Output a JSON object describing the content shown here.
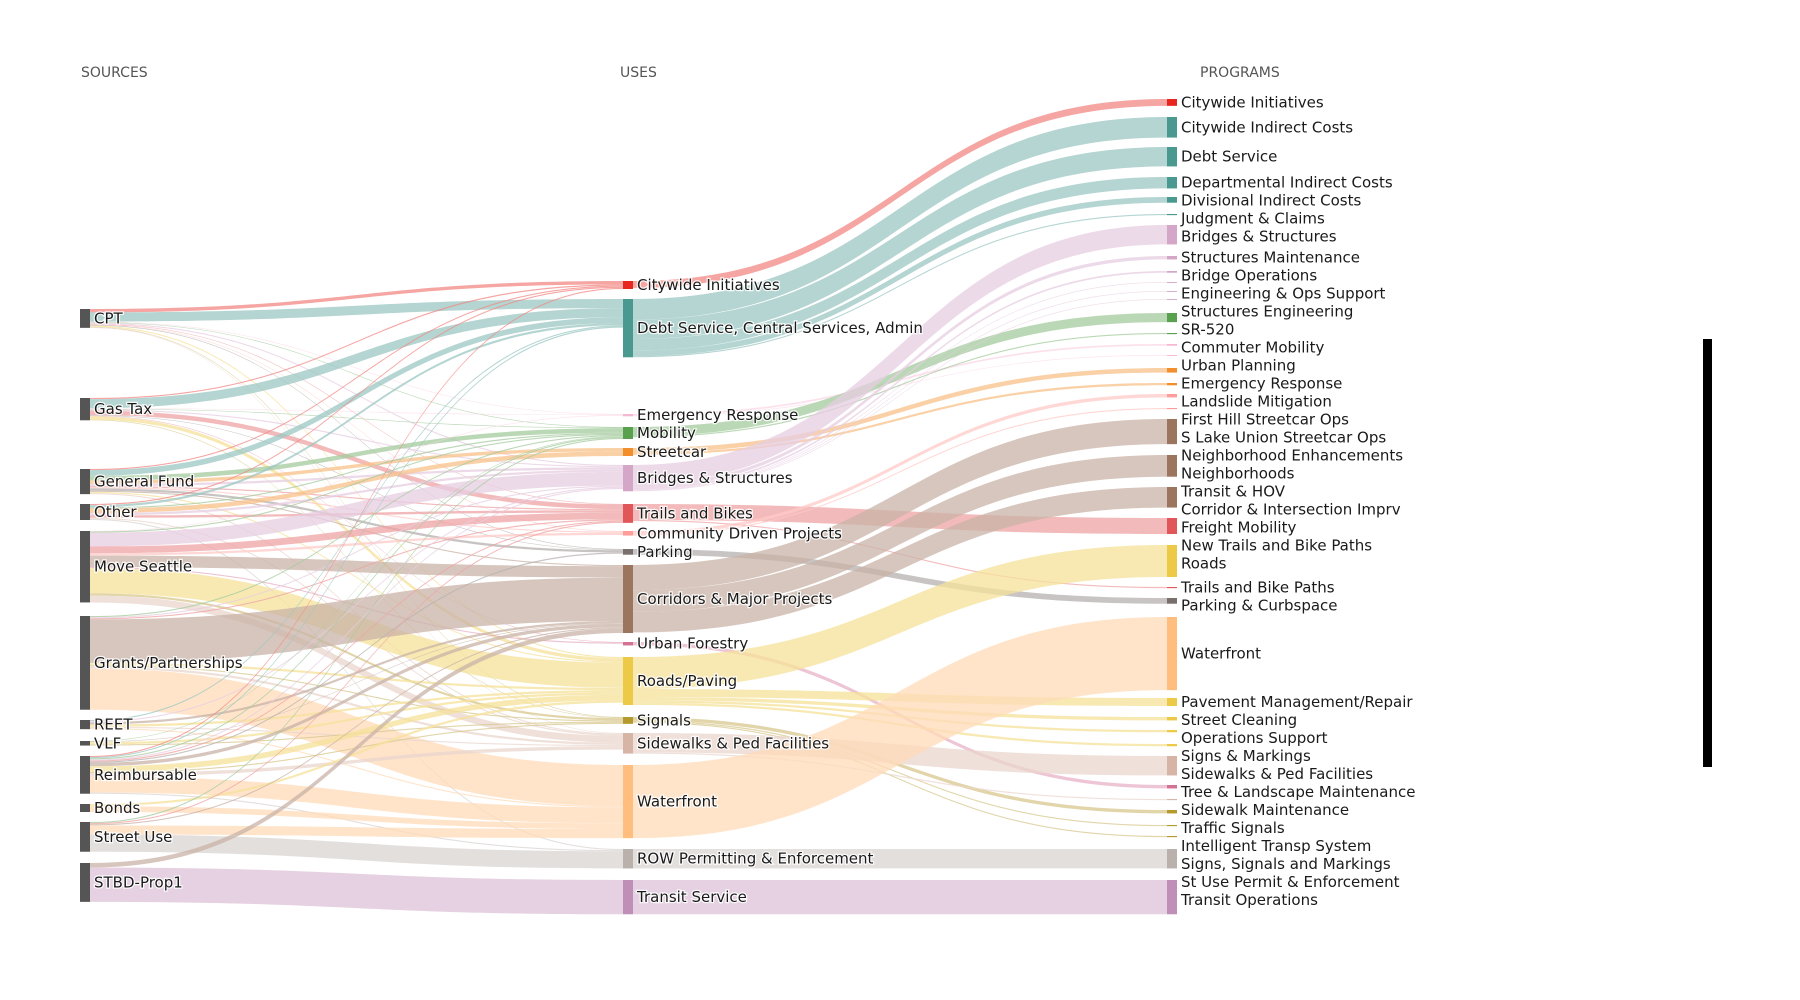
{
  "columns": {
    "sources": "SOURCES",
    "uses": "USES",
    "programs": "PROGRAMS"
  },
  "nodes": [
    {
      "label": "CPT",
      "column": "sources",
      "color": "#555555"
    },
    {
      "label": "Gas Tax",
      "column": "sources",
      "color": "#555555"
    },
    {
      "label": "General Fund",
      "column": "sources",
      "color": "#555555"
    },
    {
      "label": "Other",
      "column": "sources",
      "color": "#555555"
    },
    {
      "label": "Move Seattle",
      "column": "sources",
      "color": "#555555"
    },
    {
      "label": "Grants/Partnerships",
      "column": "sources",
      "color": "#555555"
    },
    {
      "label": "REET",
      "column": "sources",
      "color": "#555555"
    },
    {
      "label": "VLF",
      "column": "sources",
      "color": "#555555"
    },
    {
      "label": "Reimbursable",
      "column": "sources",
      "color": "#555555"
    },
    {
      "label": "Bonds",
      "column": "sources",
      "color": "#555555"
    },
    {
      "label": "Street Use",
      "column": "sources",
      "color": "#555555"
    },
    {
      "label": "STBD-Prop1",
      "column": "sources",
      "color": "#555555"
    },
    {
      "label": "Citywide Initiatives",
      "column": "uses",
      "color": "#e6261f"
    },
    {
      "label": "Debt Service, Central Services, Admin",
      "column": "uses",
      "color": "#4a9990"
    },
    {
      "label": "Emergency Response",
      "column": "uses",
      "color": "#f7b6d2"
    },
    {
      "label": "Mobility",
      "column": "uses",
      "color": "#59a14f"
    },
    {
      "label": "Streetcar",
      "column": "uses",
      "color": "#f28e2b"
    },
    {
      "label": "Bridges & Structures",
      "column": "uses",
      "color": "#d4a6c8"
    },
    {
      "label": "Trails and Bikes",
      "column": "uses",
      "color": "#e15759"
    },
    {
      "label": "Community Driven Projects",
      "column": "uses",
      "color": "#ff9d9a"
    },
    {
      "label": "Parking",
      "column": "uses",
      "color": "#79706e"
    },
    {
      "label": "Corridors & Major Projects",
      "column": "uses",
      "color": "#9c755f"
    },
    {
      "label": "Urban Forestry",
      "column": "uses",
      "color": "#d37295"
    },
    {
      "label": "Roads/Paving",
      "column": "uses",
      "color": "#edc948"
    },
    {
      "label": "Signals",
      "column": "uses",
      "color": "#b6992d"
    },
    {
      "label": "Sidewalks & Ped Facilities",
      "column": "uses",
      "color": "#d7b5a6"
    },
    {
      "label": "Waterfront",
      "column": "uses",
      "color": "#ffbe7d"
    },
    {
      "label": "ROW Permitting & Enforcement",
      "column": "uses",
      "color": "#bab0ac"
    },
    {
      "label": "Transit Service",
      "column": "uses",
      "color": "#c08fb7"
    },
    {
      "label": "Citywide Initiatives",
      "column": "programs",
      "color": "#e6261f"
    },
    {
      "label": "Citywide Indirect Costs",
      "column": "programs",
      "color": "#4a9990"
    },
    {
      "label": "Debt Service",
      "column": "programs",
      "color": "#4a9990"
    },
    {
      "label": "Departmental Indirect Costs",
      "column": "programs",
      "color": "#4a9990"
    },
    {
      "label": "Divisional Indirect Costs",
      "column": "programs",
      "color": "#4a9990"
    },
    {
      "label": "Judgment & Claims",
      "column": "programs",
      "color": "#4a9990"
    },
    {
      "label": "Bridges & Structures",
      "column": "programs",
      "color": "#d4a6c8"
    },
    {
      "label": "Structures Maintenance",
      "column": "programs",
      "color": "#d4a6c8"
    },
    {
      "label": "Bridge Operations",
      "column": "programs",
      "color": "#d4a6c8"
    },
    {
      "label": "Engineering & Ops Support",
      "column": "programs",
      "color": "#d4a6c8"
    },
    {
      "label": "Structures Engineering",
      "column": "programs",
      "color": "#d4a6c8"
    },
    {
      "label": "SR-520",
      "column": "programs",
      "color": "#d4a6c8"
    },
    {
      "label": "Commuter Mobility",
      "column": "programs",
      "color": "#59a14f"
    },
    {
      "label": "Urban Planning",
      "column": "programs",
      "color": "#59a14f"
    },
    {
      "label": "Emergency Response",
      "column": "programs",
      "color": "#f7b6d2"
    },
    {
      "label": "Landslide Mitigation",
      "column": "programs",
      "color": "#f7b6d2"
    },
    {
      "label": "First Hill Streetcar Ops",
      "column": "programs",
      "color": "#f28e2b"
    },
    {
      "label": "S Lake Union Streetcar Ops",
      "column": "programs",
      "color": "#f28e2b"
    },
    {
      "label": "Neighborhood Enhancements",
      "column": "programs",
      "color": "#ff9d9a"
    },
    {
      "label": "Neighborhoods",
      "column": "programs",
      "color": "#ff9d9a"
    },
    {
      "label": "Transit & HOV",
      "column": "programs",
      "color": "#9c755f"
    },
    {
      "label": "Corridor & Intersection Imprv",
      "column": "programs",
      "color": "#9c755f"
    },
    {
      "label": "Freight Mobility",
      "column": "programs",
      "color": "#9c755f"
    },
    {
      "label": "New Trails and Bike Paths",
      "column": "programs",
      "color": "#e15759"
    },
    {
      "label": "Roads",
      "column": "programs",
      "color": "#edc948"
    },
    {
      "label": "Trails and Bike Paths",
      "column": "programs",
      "color": "#e15759"
    },
    {
      "label": "Parking & Curbspace",
      "column": "programs",
      "color": "#79706e"
    },
    {
      "label": "Waterfront",
      "column": "programs",
      "color": "#ffbe7d"
    },
    {
      "label": "Pavement Management/Repair",
      "column": "programs",
      "color": "#edc948"
    },
    {
      "label": "Street Cleaning",
      "column": "programs",
      "color": "#edc948"
    },
    {
      "label": "Operations Support",
      "column": "programs",
      "color": "#edc948"
    },
    {
      "label": "Signs & Markings",
      "column": "programs",
      "color": "#edc948"
    },
    {
      "label": "Sidewalks & Ped Facilities",
      "column": "programs",
      "color": "#d7b5a6"
    },
    {
      "label": "Tree & Landscape Maintenance",
      "column": "programs",
      "color": "#d37295"
    },
    {
      "label": "Sidewalk Maintenance",
      "column": "programs",
      "color": "#d7b5a6"
    },
    {
      "label": "Traffic Signals",
      "column": "programs",
      "color": "#b6992d"
    },
    {
      "label": "Intelligent Transp System",
      "column": "programs",
      "color": "#b6992d"
    },
    {
      "label": "Signs, Signals and Markings",
      "column": "programs",
      "color": "#b6992d"
    },
    {
      "label": "St Use Permit & Enforcement",
      "column": "programs",
      "color": "#bab0ac"
    },
    {
      "label": "Transit Operations",
      "column": "programs",
      "color": "#c08fb7"
    }
  ],
  "links": [
    {
      "source": 0,
      "target": 12,
      "value": 3
    },
    {
      "source": 0,
      "target": 13,
      "value": 8
    },
    {
      "source": 0,
      "target": 14,
      "value": 0.5
    },
    {
      "source": 0,
      "target": 15,
      "value": 0.5
    },
    {
      "source": 0,
      "target": 17,
      "value": 1
    },
    {
      "source": 0,
      "target": 18,
      "value": 0.5
    },
    {
      "source": 0,
      "target": 19,
      "value": 0.5
    },
    {
      "source": 0,
      "target": 20,
      "value": 0.5
    },
    {
      "source": 0,
      "target": 23,
      "value": 1
    },
    {
      "source": 0,
      "target": 24,
      "value": 0.5
    },
    {
      "source": 0,
      "target": 25,
      "value": 0.5
    },
    {
      "source": 1,
      "target": 12,
      "value": 1
    },
    {
      "source": 1,
      "target": 13,
      "value": 8
    },
    {
      "source": 1,
      "target": 14,
      "value": 0.5
    },
    {
      "source": 1,
      "target": 15,
      "value": 0.5
    },
    {
      "source": 1,
      "target": 17,
      "value": 1
    },
    {
      "source": 1,
      "target": 18,
      "value": 4
    },
    {
      "source": 1,
      "target": 20,
      "value": 0.5
    },
    {
      "source": 1,
      "target": 22,
      "value": 0.5
    },
    {
      "source": 1,
      "target": 23,
      "value": 3
    },
    {
      "source": 1,
      "target": 24,
      "value": 0.5
    },
    {
      "source": 2,
      "target": 12,
      "value": 1
    },
    {
      "source": 2,
      "target": 13,
      "value": 5
    },
    {
      "source": 2,
      "target": 15,
      "value": 4
    },
    {
      "source": 2,
      "target": 16,
      "value": 3
    },
    {
      "source": 2,
      "target": 17,
      "value": 2
    },
    {
      "source": 2,
      "target": 18,
      "value": 1
    },
    {
      "source": 2,
      "target": 19,
      "value": 1
    },
    {
      "source": 2,
      "target": 20,
      "value": 2
    },
    {
      "source": 2,
      "target": 21,
      "value": 1
    },
    {
      "source": 2,
      "target": 23,
      "value": 1
    },
    {
      "source": 2,
      "target": 25,
      "value": 1
    },
    {
      "source": 3,
      "target": 12,
      "value": 1
    },
    {
      "source": 3,
      "target": 13,
      "value": 2
    },
    {
      "source": 3,
      "target": 15,
      "value": 1
    },
    {
      "source": 3,
      "target": 16,
      "value": 4
    },
    {
      "source": 3,
      "target": 17,
      "value": 2
    },
    {
      "source": 3,
      "target": 18,
      "value": 2
    },
    {
      "source": 3,
      "target": 25,
      "value": 1
    },
    {
      "source": 3,
      "target": 27,
      "value": 1
    },
    {
      "source": 4,
      "target": 14,
      "value": 0.5
    },
    {
      "source": 4,
      "target": 15,
      "value": 1
    },
    {
      "source": 4,
      "target": 17,
      "value": 12
    },
    {
      "source": 4,
      "target": 18,
      "value": 6
    },
    {
      "source": 4,
      "target": 19,
      "value": 2
    },
    {
      "source": 4,
      "target": 21,
      "value": 10
    },
    {
      "source": 4,
      "target": 22,
      "value": 1
    },
    {
      "source": 4,
      "target": 23,
      "value": 22
    },
    {
      "source": 4,
      "target": 24,
      "value": 2
    },
    {
      "source": 4,
      "target": 25,
      "value": 6
    },
    {
      "source": 5,
      "target": 15,
      "value": 1
    },
    {
      "source": 5,
      "target": 17,
      "value": 1
    },
    {
      "source": 5,
      "target": 18,
      "value": 1
    },
    {
      "source": 5,
      "target": 21,
      "value": 38
    },
    {
      "source": 5,
      "target": 23,
      "value": 2
    },
    {
      "source": 5,
      "target": 24,
      "value": 1
    },
    {
      "source": 5,
      "target": 25,
      "value": 2
    },
    {
      "source": 5,
      "target": 26,
      "value": 36
    },
    {
      "source": 6,
      "target": 13,
      "value": 1
    },
    {
      "source": 6,
      "target": 17,
      "value": 1
    },
    {
      "source": 6,
      "target": 21,
      "value": 2
    },
    {
      "source": 6,
      "target": 23,
      "value": 2
    },
    {
      "source": 6,
      "target": 25,
      "value": 1
    },
    {
      "source": 6,
      "target": 26,
      "value": 1
    },
    {
      "source": 7,
      "target": 15,
      "value": 0.5
    },
    {
      "source": 7,
      "target": 21,
      "value": 0.5
    },
    {
      "source": 7,
      "target": 23,
      "value": 2
    },
    {
      "source": 7,
      "target": 24,
      "value": 1
    },
    {
      "source": 8,
      "target": 12,
      "value": 1
    },
    {
      "source": 8,
      "target": 13,
      "value": 1
    },
    {
      "source": 8,
      "target": 15,
      "value": 1
    },
    {
      "source": 8,
      "target": 17,
      "value": 1
    },
    {
      "source": 8,
      "target": 18,
      "value": 1
    },
    {
      "source": 8,
      "target": 20,
      "value": 1
    },
    {
      "source": 8,
      "target": 21,
      "value": 3
    },
    {
      "source": 8,
      "target": 23,
      "value": 5
    },
    {
      "source": 8,
      "target": 24,
      "value": 1
    },
    {
      "source": 8,
      "target": 25,
      "value": 3
    },
    {
      "source": 8,
      "target": 26,
      "value": 14
    },
    {
      "source": 8,
      "target": 27,
      "value": 1
    },
    {
      "source": 9,
      "target": 23,
      "value": 2
    },
    {
      "source": 9,
      "target": 26,
      "value": 5
    },
    {
      "source": 10,
      "target": 15,
      "value": 1
    },
    {
      "source": 10,
      "target": 18,
      "value": 1
    },
    {
      "source": 10,
      "target": 21,
      "value": 1
    },
    {
      "source": 10,
      "target": 26,
      "value": 8
    },
    {
      "source": 10,
      "target": 27,
      "value": 15
    },
    {
      "source": 11,
      "target": 21,
      "value": 4
    },
    {
      "source": 11,
      "target": 28,
      "value": 30
    },
    {
      "source": 12,
      "target": 29,
      "value": 6
    },
    {
      "source": 13,
      "target": 30,
      "value": 18
    },
    {
      "source": 13,
      "target": 31,
      "value": 17
    },
    {
      "source": 13,
      "target": 32,
      "value": 10
    },
    {
      "source": 13,
      "target": 33,
      "value": 5
    },
    {
      "source": 13,
      "target": 34,
      "value": 1
    },
    {
      "source": 14,
      "target": 43,
      "value": 1.5
    },
    {
      "source": 14,
      "target": 44,
      "value": 0.5
    },
    {
      "source": 15,
      "target": 41,
      "value": 8
    },
    {
      "source": 15,
      "target": 42,
      "value": 1
    },
    {
      "source": 16,
      "target": 45,
      "value": 4
    },
    {
      "source": 16,
      "target": 46,
      "value": 2
    },
    {
      "source": 17,
      "target": 35,
      "value": 17
    },
    {
      "source": 17,
      "target": 36,
      "value": 3
    },
    {
      "source": 17,
      "target": 37,
      "value": 1.5
    },
    {
      "source": 17,
      "target": 38,
      "value": 0.5
    },
    {
      "source": 17,
      "target": 39,
      "value": 0.5
    },
    {
      "source": 17,
      "target": 40,
      "value": 0.5
    },
    {
      "source": 18,
      "target": 52,
      "value": 14
    },
    {
      "source": 18,
      "target": 54,
      "value": 1
    },
    {
      "source": 19,
      "target": 47,
      "value": 3
    },
    {
      "source": 19,
      "target": 48,
      "value": 1
    },
    {
      "source": 20,
      "target": 55,
      "value": 5
    },
    {
      "source": 21,
      "target": 49,
      "value": 22
    },
    {
      "source": 21,
      "target": 50,
      "value": 19
    },
    {
      "source": 21,
      "target": 51,
      "value": 18
    },
    {
      "source": 22,
      "target": 62,
      "value": 3
    },
    {
      "source": 23,
      "target": 53,
      "value": 28
    },
    {
      "source": 23,
      "target": 57,
      "value": 7
    },
    {
      "source": 23,
      "target": 58,
      "value": 3
    },
    {
      "source": 23,
      "target": 59,
      "value": 2
    },
    {
      "source": 23,
      "target": 60,
      "value": 2
    },
    {
      "source": 24,
      "target": 64,
      "value": 3
    },
    {
      "source": 24,
      "target": 65,
      "value": 1
    },
    {
      "source": 24,
      "target": 66,
      "value": 1
    },
    {
      "source": 25,
      "target": 61,
      "value": 17
    },
    {
      "source": 25,
      "target": 63,
      "value": 1
    },
    {
      "source": 26,
      "target": 56,
      "value": 64
    },
    {
      "source": 27,
      "target": 67,
      "value": 17
    },
    {
      "source": 28,
      "target": 68,
      "value": 30
    }
  ]
}
